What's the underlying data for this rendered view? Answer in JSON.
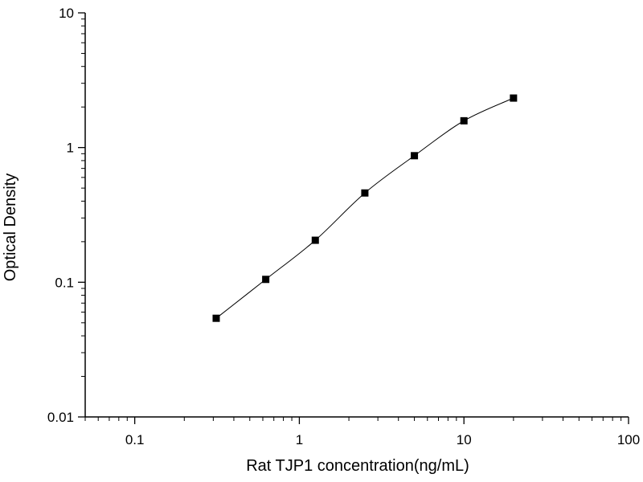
{
  "chart_data": {
    "type": "scatter",
    "title": "",
    "xlabel": "Rat TJP1 concentration(ng/mL)",
    "ylabel": "Optical Density",
    "xscale": "log",
    "yscale": "log",
    "xlim": [
      0.05,
      100
    ],
    "ylim": [
      0.01,
      10
    ],
    "xticks": [
      {
        "value": 0.1,
        "label": "0.1"
      },
      {
        "value": 1,
        "label": "1"
      },
      {
        "value": 10,
        "label": "10"
      },
      {
        "value": 100,
        "label": "100"
      }
    ],
    "yticks": [
      {
        "value": 0.01,
        "label": "0.01"
      },
      {
        "value": 0.1,
        "label": "0.1"
      },
      {
        "value": 1,
        "label": "1"
      },
      {
        "value": 10,
        "label": "10"
      }
    ],
    "grid": false,
    "legend": false,
    "marker": "square",
    "marker_color": "#000000",
    "line_color": "#000000",
    "fit_curve": true,
    "series": [
      {
        "x": [
          0.3125,
          0.625,
          1.25,
          2.5,
          5,
          10,
          20
        ],
        "y": [
          0.054,
          0.105,
          0.205,
          0.46,
          0.87,
          1.58,
          2.33
        ]
      }
    ]
  }
}
